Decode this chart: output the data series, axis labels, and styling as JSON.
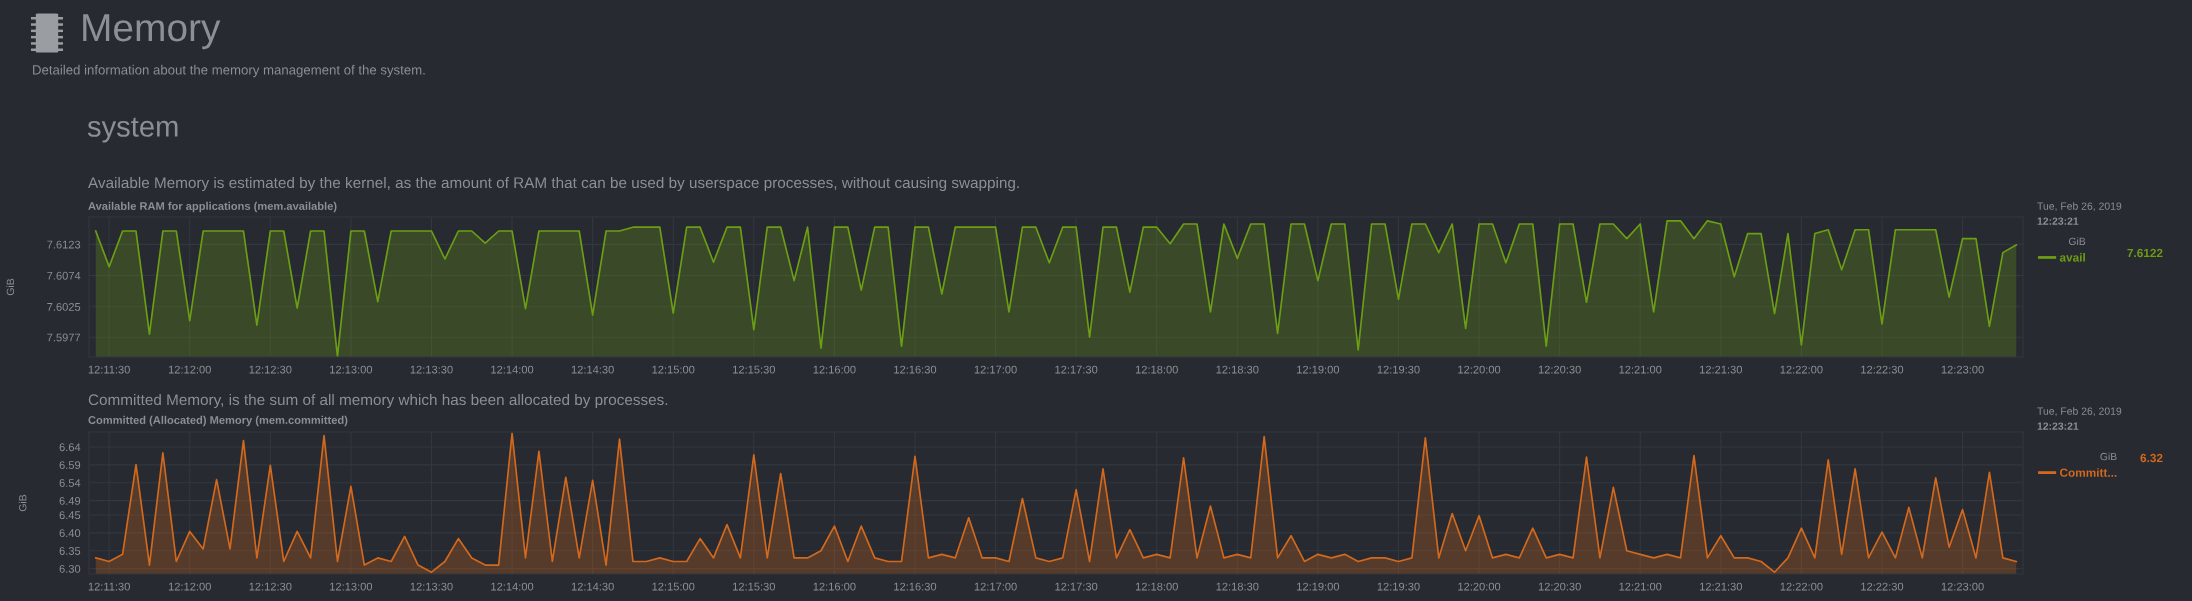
{
  "chart_data": [
    {
      "type": "area",
      "title": "Available RAM for applications (mem.available)",
      "subtitle": "Available Memory is estimated by the kernel, as the amount of RAM that can be used by userspace processes, without causing swapping.",
      "ylabel": "GiB",
      "legend_title": "GiB",
      "legend": "right",
      "grid": true,
      "annotations": [
        "Memory",
        "Detailed information about the memory management of the system.",
        "system",
        "Tue, Feb 26, 2019",
        "12:23:21",
        "7.6122"
      ],
      "ylim": [
        7.5946,
        7.6166
      ],
      "yticks": [
        7.5977,
        7.6025,
        7.6074,
        7.6123
      ],
      "categories": [
        null,
        "12:11:30",
        null,
        null,
        null,
        null,
        null,
        "12:12:00",
        null,
        null,
        null,
        null,
        null,
        "12:12:30",
        null,
        null,
        null,
        null,
        null,
        "12:13:00",
        null,
        null,
        null,
        null,
        null,
        "12:13:30",
        null,
        null,
        null,
        null,
        null,
        "12:14:00",
        null,
        null,
        null,
        null,
        null,
        "12:14:30",
        null,
        null,
        null,
        null,
        null,
        "12:15:00",
        null,
        null,
        null,
        null,
        null,
        "12:15:30",
        null,
        null,
        null,
        null,
        null,
        "12:16:00",
        null,
        null,
        null,
        null,
        null,
        "12:16:30",
        null,
        null,
        null,
        null,
        null,
        "12:17:00",
        null,
        null,
        null,
        null,
        null,
        "12:17:30",
        null,
        null,
        null,
        null,
        null,
        "12:18:00",
        null,
        null,
        null,
        null,
        null,
        "12:18:30",
        null,
        null,
        null,
        null,
        null,
        "12:19:00",
        null,
        null,
        null,
        null,
        null,
        "12:19:30",
        null,
        null,
        null,
        null,
        null,
        "12:20:00",
        null,
        null,
        null,
        null,
        null,
        "12:20:30",
        null,
        null,
        null,
        null,
        null,
        "12:21:00",
        null,
        null,
        null,
        null,
        null,
        "12:21:30",
        null,
        null,
        null,
        null,
        null,
        "12:22:00",
        null,
        null,
        null,
        null,
        null,
        "12:22:30",
        null,
        null,
        null,
        null,
        null,
        "12:23:00",
        null,
        null,
        null,
        null
      ],
      "series": [
        {
          "name": "avail",
          "color": "#6c9e14",
          "values": [
            7.6144,
            7.6088,
            7.6144,
            7.6144,
            7.5982,
            7.6144,
            7.6144,
            7.6003,
            7.6144,
            7.6144,
            7.6144,
            7.6144,
            7.5996,
            7.6144,
            7.6144,
            7.6023,
            7.6144,
            7.6144,
            7.5947,
            7.6144,
            7.6144,
            7.6033,
            7.6144,
            7.6144,
            7.6144,
            7.6144,
            7.61,
            7.6144,
            7.6144,
            7.6125,
            7.6144,
            7.6144,
            7.6022,
            7.6144,
            7.6144,
            7.6144,
            7.6144,
            7.6012,
            7.6144,
            7.6144,
            7.615,
            7.615,
            7.615,
            7.6015,
            7.615,
            7.615,
            7.6095,
            7.615,
            7.615,
            7.5989,
            7.615,
            7.615,
            7.6066,
            7.615,
            7.596,
            7.615,
            7.615,
            7.6051,
            7.615,
            7.615,
            7.5963,
            7.615,
            7.615,
            7.6045,
            7.615,
            7.615,
            7.615,
            7.615,
            7.6017,
            7.615,
            7.615,
            7.6094,
            7.615,
            7.615,
            7.5977,
            7.615,
            7.615,
            7.6048,
            7.615,
            7.615,
            7.6124,
            7.6155,
            7.6155,
            7.6017,
            7.6155,
            7.6101,
            7.6155,
            7.6155,
            7.5983,
            7.6155,
            7.6155,
            7.6066,
            7.6155,
            7.6155,
            7.5957,
            7.6155,
            7.6155,
            7.6037,
            7.6155,
            7.6155,
            7.611,
            7.6155,
            7.5991,
            7.6155,
            7.6155,
            7.6094,
            7.6155,
            7.6155,
            7.5963,
            7.6155,
            7.6155,
            7.6032,
            7.6155,
            7.6155,
            7.6132,
            7.6155,
            7.6017,
            7.616,
            7.616,
            7.6132,
            7.616,
            7.6155,
            7.6072,
            7.614,
            7.614,
            7.6014,
            7.614,
            7.5965,
            7.614,
            7.6146,
            7.6083,
            7.6146,
            7.6146,
            7.5998,
            7.6146,
            7.6146,
            7.6146,
            7.6146,
            7.604,
            7.6132,
            7.6132,
            7.5994,
            7.611,
            7.6122
          ]
        }
      ]
    },
    {
      "type": "area",
      "title": "Committed (Allocated) Memory (mem.committed)",
      "subtitle": "Committed Memory, is the sum of all memory which has been allocated by processes.",
      "ylabel": "GiB",
      "legend_title": "GiB",
      "legend": "right",
      "grid": true,
      "annotations": [
        "Tue, Feb 26, 2019",
        "12:23:21",
        "6.32"
      ],
      "ylim": [
        6.285,
        6.682
      ],
      "yticks": [
        {
          "value": 6.3,
          "label": "6.30"
        },
        {
          "value": 6.35,
          "label": "6.35"
        },
        {
          "value": 6.4,
          "label": "6.40"
        },
        {
          "value": 6.45,
          "label": "6.45"
        },
        {
          "value": 6.49,
          "label": "6.49"
        },
        {
          "value": 6.54,
          "label": "6.54"
        },
        {
          "value": 6.59,
          "label": "6.59"
        },
        {
          "value": 6.64,
          "label": "6.64"
        }
      ],
      "categories": [
        null,
        "12:11:30",
        null,
        null,
        null,
        null,
        null,
        "12:12:00",
        null,
        null,
        null,
        null,
        null,
        "12:12:30",
        null,
        null,
        null,
        null,
        null,
        "12:13:00",
        null,
        null,
        null,
        null,
        null,
        "12:13:30",
        null,
        null,
        null,
        null,
        null,
        "12:14:00",
        null,
        null,
        null,
        null,
        null,
        "12:14:30",
        null,
        null,
        null,
        null,
        null,
        "12:15:00",
        null,
        null,
        null,
        null,
        null,
        "12:15:30",
        null,
        null,
        null,
        null,
        null,
        "12:16:00",
        null,
        null,
        null,
        null,
        null,
        "12:16:30",
        null,
        null,
        null,
        null,
        null,
        "12:17:00",
        null,
        null,
        null,
        null,
        null,
        "12:17:30",
        null,
        null,
        null,
        null,
        null,
        "12:18:00",
        null,
        null,
        null,
        null,
        null,
        "12:18:30",
        null,
        null,
        null,
        null,
        null,
        "12:19:00",
        null,
        null,
        null,
        null,
        null,
        "12:19:30",
        null,
        null,
        null,
        null,
        null,
        "12:20:00",
        null,
        null,
        null,
        null,
        null,
        "12:20:30",
        null,
        null,
        null,
        null,
        null,
        "12:21:00",
        null,
        null,
        null,
        null,
        null,
        "12:21:30",
        null,
        null,
        null,
        null,
        null,
        "12:22:00",
        null,
        null,
        null,
        null,
        null,
        "12:22:30",
        null,
        null,
        null,
        null,
        null,
        "12:23:00",
        null,
        null,
        null,
        null
      ],
      "series": [
        {
          "name": "Committ...",
          "color": "#d2691e",
          "values": [
            6.33,
            6.32,
            6.34,
            6.591,
            6.31,
            6.624,
            6.32,
            6.404,
            6.355,
            6.549,
            6.355,
            6.658,
            6.33,
            6.589,
            6.32,
            6.404,
            6.33,
            6.672,
            6.32,
            6.53,
            6.31,
            6.33,
            6.32,
            6.39,
            6.31,
            6.29,
            6.32,
            6.384,
            6.33,
            6.31,
            6.31,
            6.678,
            6.33,
            6.628,
            6.32,
            6.555,
            6.33,
            6.547,
            6.31,
            6.662,
            6.32,
            6.32,
            6.33,
            6.32,
            6.32,
            6.384,
            6.33,
            6.423,
            6.33,
            6.618,
            6.33,
            6.566,
            6.33,
            6.33,
            6.35,
            6.419,
            6.32,
            6.419,
            6.33,
            6.32,
            6.32,
            6.614,
            6.33,
            6.34,
            6.33,
            6.442,
            6.33,
            6.33,
            6.32,
            6.496,
            6.33,
            6.32,
            6.33,
            6.521,
            6.32,
            6.579,
            6.33,
            6.409,
            6.33,
            6.34,
            6.33,
            6.61,
            6.33,
            6.475,
            6.33,
            6.34,
            6.33,
            6.669,
            6.33,
            6.392,
            6.32,
            6.34,
            6.33,
            6.34,
            6.32,
            6.33,
            6.33,
            6.32,
            6.33,
            6.666,
            6.33,
            6.454,
            6.35,
            6.448,
            6.33,
            6.34,
            6.33,
            6.413,
            6.33,
            6.34,
            6.33,
            6.612,
            6.33,
            6.527,
            6.35,
            6.34,
            6.33,
            6.34,
            6.33,
            6.616,
            6.33,
            6.392,
            6.33,
            6.33,
            6.32,
            6.29,
            6.33,
            6.413,
            6.33,
            6.604,
            6.34,
            6.579,
            6.33,
            6.402,
            6.33,
            6.471,
            6.33,
            6.554,
            6.36,
            6.465,
            6.33,
            6.569,
            6.33,
            6.32
          ]
        }
      ]
    }
  ]
}
